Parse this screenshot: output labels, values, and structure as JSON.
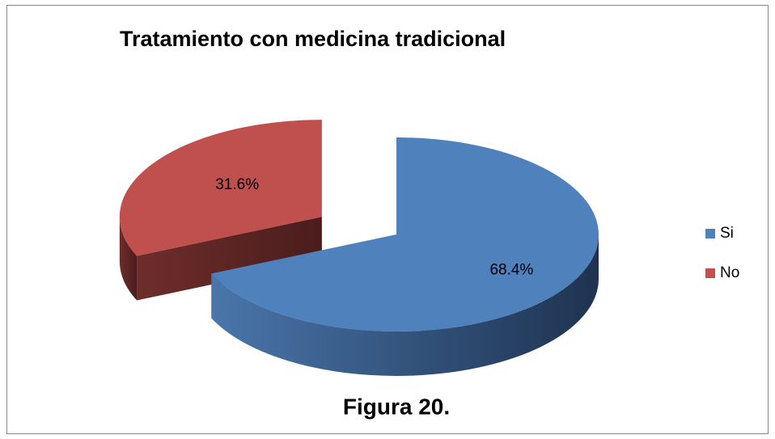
{
  "chart_data": {
    "type": "pie",
    "title": "Tratamiento con medicina tradicional",
    "categories": [
      "Si",
      "No"
    ],
    "values": [
      68.4,
      31.6
    ],
    "value_labels": [
      "68.4%",
      "31.6%"
    ],
    "colors": [
      "#4f81bd",
      "#c0504d"
    ],
    "legend": "right",
    "caption": "Figura 20."
  }
}
